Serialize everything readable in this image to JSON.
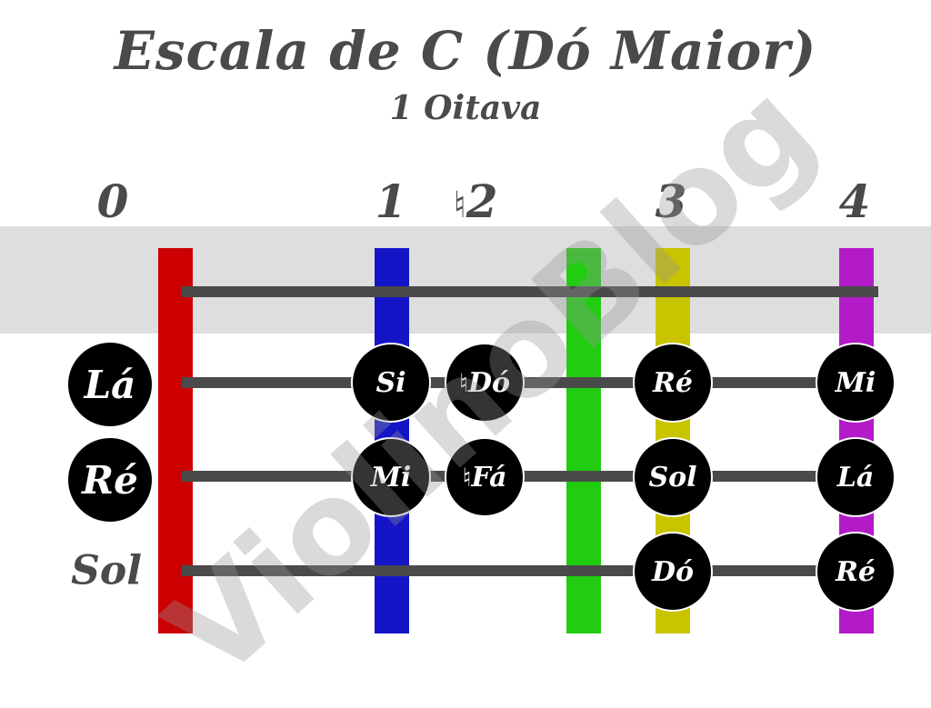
{
  "title": "Escala de C (Dó Maior)",
  "subtitle": "1 Oitava",
  "watermark": "ViolinoBlog",
  "fingers": {
    "f0": "0",
    "f1": "1",
    "f2_natural": "♮",
    "f2": "2",
    "f3": "3",
    "f4": "4"
  },
  "frets": {
    "nut_color": "#cc0000",
    "first_color": "#1515c8",
    "second_color": "#22cc11",
    "third_color": "#c8c400",
    "fourth_color": "#b31bc8"
  },
  "strings": {
    "la": {
      "open": "Lá",
      "notes": [
        {
          "name": "Si"
        },
        {
          "natural": "♮",
          "name": "Dó"
        },
        {
          "name": "Ré"
        },
        {
          "name": "Mi"
        }
      ]
    },
    "re": {
      "open": "Ré",
      "notes": [
        {
          "name": "Mi"
        },
        {
          "natural": "♮",
          "name": "Fá"
        },
        {
          "name": "Sol"
        },
        {
          "name": "Lá"
        }
      ]
    },
    "sol": {
      "open": "Sol",
      "notes": [
        {
          "name": "Dó"
        },
        {
          "name": "Ré"
        }
      ]
    }
  }
}
